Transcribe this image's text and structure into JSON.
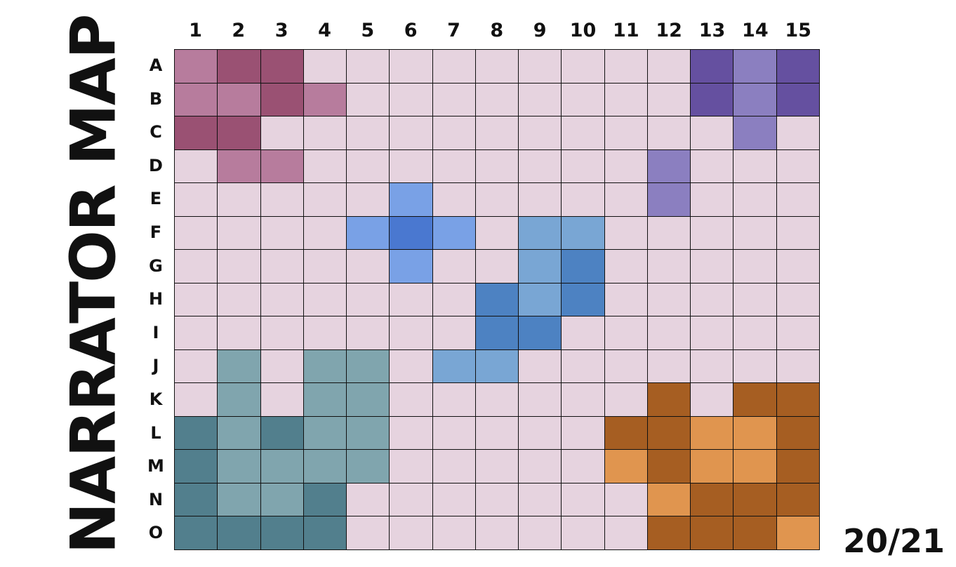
{
  "title": "NARRATOR MAP",
  "page_indicator": "20/21",
  "columns": [
    "1",
    "2",
    "3",
    "4",
    "5",
    "6",
    "7",
    "8",
    "9",
    "10",
    "11",
    "12",
    "13",
    "14",
    "15"
  ],
  "rows": [
    "A",
    "B",
    "C",
    "D",
    "E",
    "F",
    "G",
    "H",
    "I",
    "J",
    "K",
    "L",
    "M",
    "N",
    "O"
  ],
  "palette": {
    ".": "#e6d3df",
    "m": "#9a5173",
    "p": "#b77c9d",
    "V": "#6550a0",
    "v": "#8b7fc0",
    "b": "#79a1e6",
    "B": "#4a78d0",
    "s": "#79a6d4",
    "S": "#4d82c2",
    "t": "#80a5ae",
    "T": "#527f8d",
    "o": "#e0954f",
    "O": "#a65e22"
  },
  "cells": [
    "pmm.........VvV",
    "ppmp........VvV",
    "mm...........v.",
    ".pp........v...",
    ".....b.....v...",
    "....bBb.ss.....",
    ".....b..sS.....",
    ".......SsS.....",
    ".......SS......",
    ".t.tt.ss.......",
    ".t.tt......O.OO",
    "TtTtt.....OOooO",
    "Ttttt.....oOooO",
    "TttT.......oOOO",
    "TTTT.......OOOo"
  ]
}
